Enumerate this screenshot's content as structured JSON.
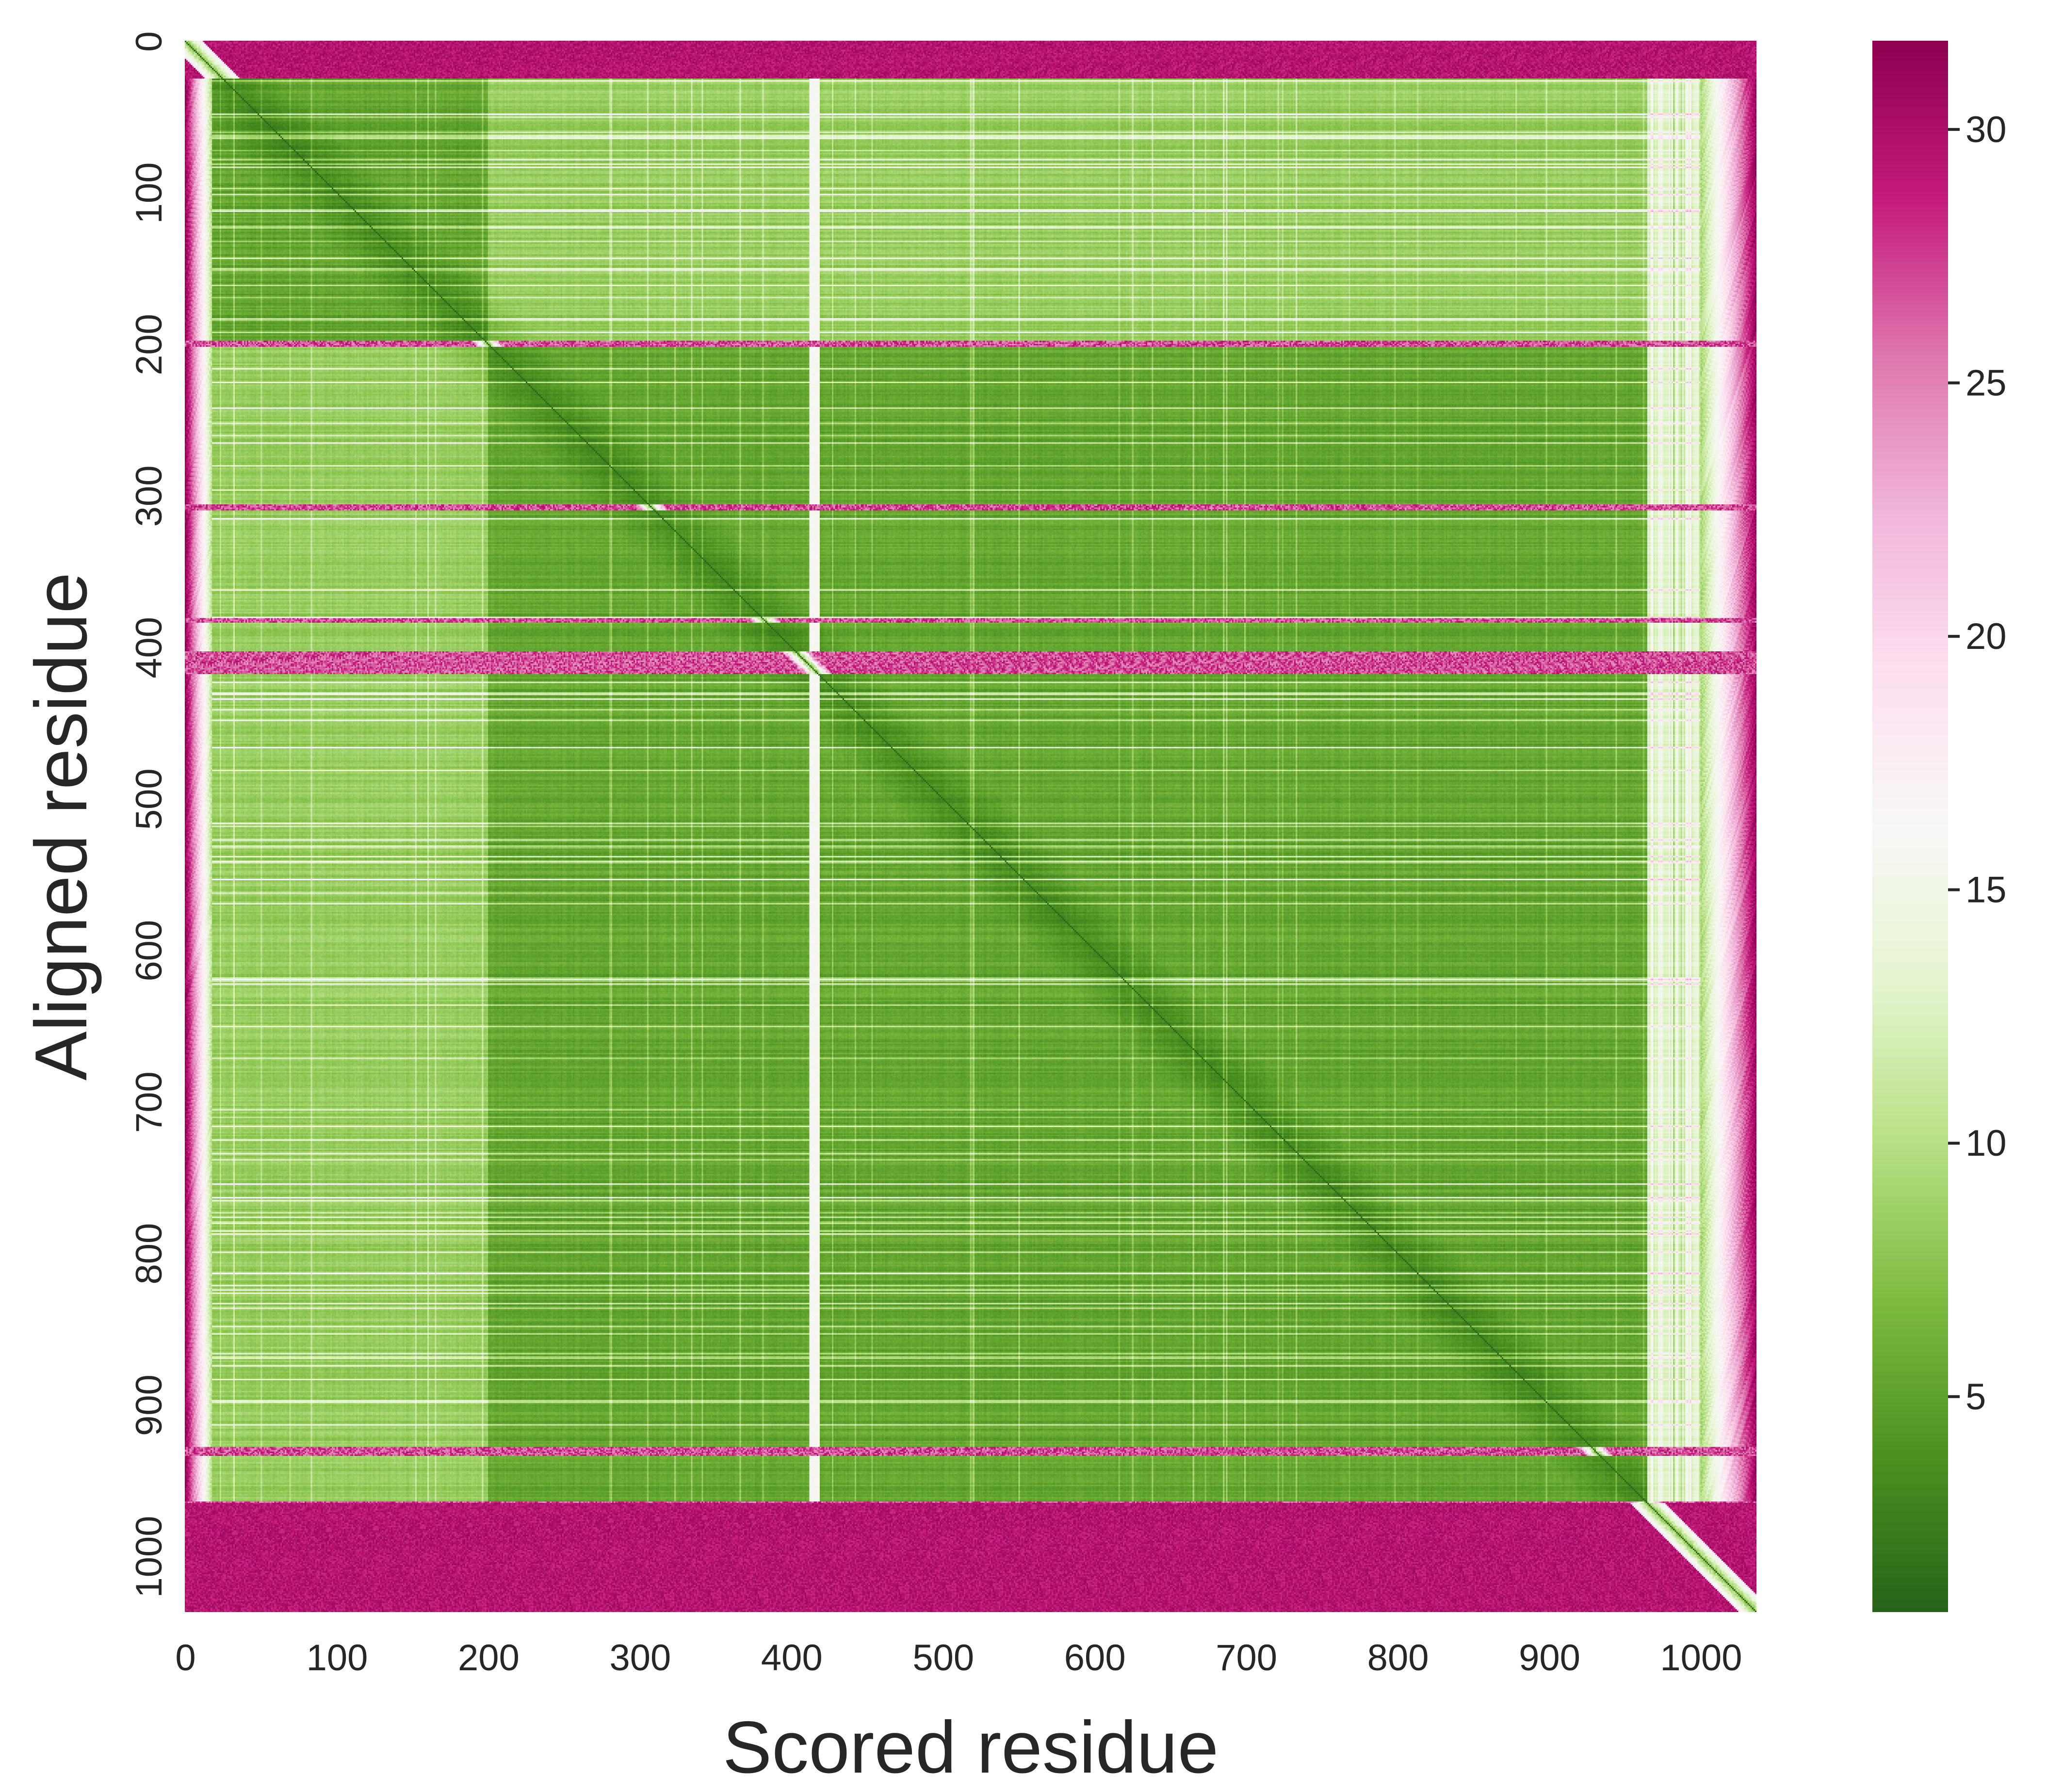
{
  "chart_data": {
    "type": "heatmap",
    "title": "",
    "xlabel": "Scored residue",
    "ylabel": "Aligned residue",
    "x_range": [
      0,
      1037
    ],
    "y_range": [
      0,
      1037
    ],
    "x_ticks": [
      0,
      100,
      200,
      300,
      400,
      500,
      600,
      700,
      800,
      900,
      1000
    ],
    "y_ticks": [
      0,
      100,
      200,
      300,
      400,
      500,
      600,
      700,
      800,
      900,
      1000
    ],
    "y_axis_inverted": true,
    "colorbar": {
      "colormap": "PiYG_r",
      "range": [
        0.75,
        31.75
      ],
      "ticks": [
        5,
        10,
        15,
        20,
        25,
        30
      ],
      "colors": {
        "low": "#276419",
        "mid": "#f7f7f7",
        "high": "#8e0152"
      }
    },
    "domains": [
      {
        "start": 0,
        "end": 24,
        "type": "disordered"
      },
      {
        "start": 25,
        "end": 199,
        "type": "structured"
      },
      {
        "start": 200,
        "end": 964,
        "type": "structured"
      },
      {
        "start": 965,
        "end": 1037,
        "type": "disordered"
      }
    ],
    "disordered_rows": [
      {
        "start": 198,
        "end": 201
      },
      {
        "start": 306,
        "end": 309
      },
      {
        "start": 381,
        "end": 383
      },
      {
        "start": 403,
        "end": 417
      },
      {
        "start": 928,
        "end": 933
      },
      {
        "start": 964,
        "end": 1037
      }
    ],
    "flexible_column": {
      "index": 415,
      "width": 6
    },
    "approximate_values": {
      "diagonal": 0.8,
      "intra_domain": 3.5,
      "inter_domain": 6.5,
      "disordered": 30
    }
  }
}
